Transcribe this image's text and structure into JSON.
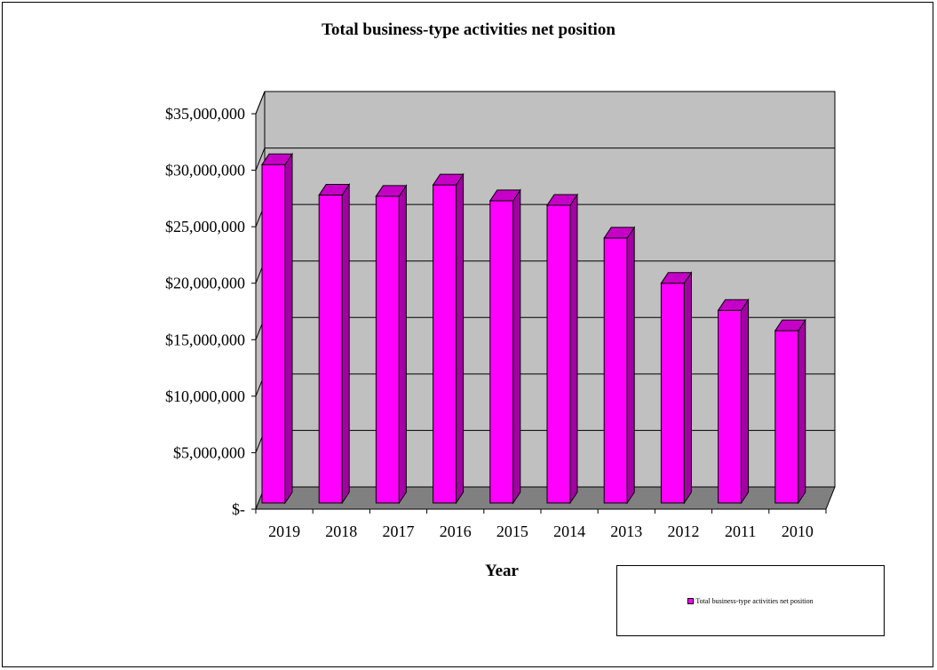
{
  "chart_data": {
    "type": "bar",
    "title": "Total business-type activities net position",
    "xlabel": "Year",
    "ylabel": "",
    "categories": [
      "2019",
      "2018",
      "2017",
      "2016",
      "2015",
      "2014",
      "2013",
      "2012",
      "2011",
      "2010"
    ],
    "series": [
      {
        "name": "Total business-type activities net position",
        "values": [
          30500000,
          27800000,
          27700000,
          28700000,
          27300000,
          26900000,
          24000000,
          20000000,
          17600000,
          15800000
        ],
        "color": "#ff00ff"
      }
    ],
    "ylim": [
      0,
      35000000
    ],
    "yticks": [
      {
        "value": 0,
        "label": "$-"
      },
      {
        "value": 5000000,
        "label": "$5,000,000"
      },
      {
        "value": 10000000,
        "label": "$10,000,000"
      },
      {
        "value": 15000000,
        "label": "$15,000,000"
      },
      {
        "value": 20000000,
        "label": "$20,000,000"
      },
      {
        "value": 25000000,
        "label": "$25,000,000"
      },
      {
        "value": 30000000,
        "label": "$30,000,000"
      },
      {
        "value": 35000000,
        "label": "$35,000,000"
      }
    ],
    "grid": true,
    "legend_position": "bottom-right",
    "style": "3d-column",
    "colors": {
      "bar": "#ff00ff",
      "bar_dark": "#a300a3",
      "bar_top": "#c700c7",
      "wall": "#c0c0c0",
      "floor": "#808080"
    }
  }
}
